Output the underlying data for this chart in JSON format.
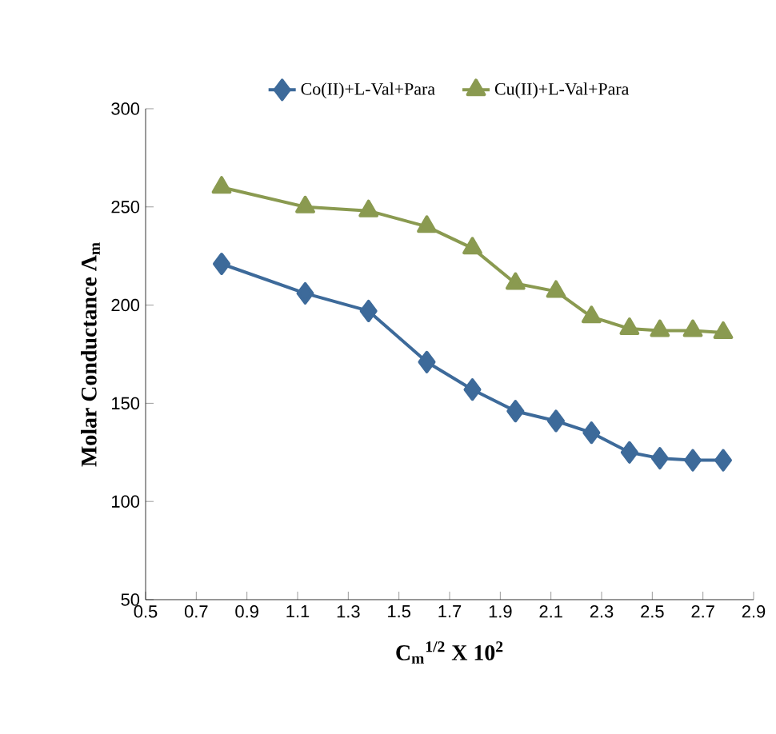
{
  "chart_data": {
    "type": "line",
    "xlabel": "C$_{m}$$^{1/2}$ X 10$^{2}$",
    "ylabel": "Molar Conductance Λ$_{m}$",
    "x": [
      0.8,
      1.13,
      1.38,
      1.61,
      1.79,
      1.96,
      2.12,
      2.26,
      2.41,
      2.53,
      2.66,
      2.78
    ],
    "series": [
      {
        "name": "Co(II)+L-Val+Para",
        "color": "#3d6a9a",
        "marker": "diamond",
        "values": [
          221,
          206,
          197,
          171,
          157,
          146,
          141,
          135,
          125,
          122,
          121,
          121
        ]
      },
      {
        "name": "Cu(II)+L-Val+Para",
        "color": "#8a9a50",
        "marker": "triangle",
        "values": [
          260,
          250,
          248,
          240,
          229,
          211,
          207,
          194,
          188,
          187,
          187,
          186
        ]
      }
    ],
    "xlim": [
      0.5,
      2.9
    ],
    "xticks": [
      0.5,
      0.7,
      0.9,
      1.1,
      1.3,
      1.5,
      1.7,
      1.9,
      2.1,
      2.3,
      2.5,
      2.7,
      2.9
    ],
    "ylim": [
      50,
      300
    ],
    "yticks": [
      50,
      100,
      150,
      200,
      250,
      300
    ],
    "grid": false,
    "legend": "top"
  }
}
